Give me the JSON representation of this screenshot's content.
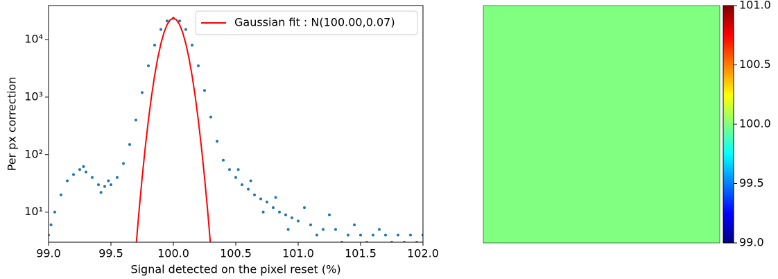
{
  "chart_data": [
    {
      "type": "scatter",
      "xlabel": "Signal detected on the pixel reset (%)",
      "ylabel": "Per px correction",
      "xlim": [
        99,
        102
      ],
      "xticks": [
        {
          "value": 99,
          "label": "99.0"
        },
        {
          "value": 99.5,
          "label": "99.5"
        },
        {
          "value": 100,
          "label": "100.0"
        },
        {
          "value": 100.5,
          "label": "100.5"
        },
        {
          "value": 101,
          "label": "101.0"
        },
        {
          "value": 101.5,
          "label": "101.5"
        },
        {
          "value": 102,
          "label": "102.0"
        }
      ],
      "ylim": [
        3,
        39000
      ],
      "yscale": "log",
      "yticks": [
        {
          "value": 10,
          "label": "10¹"
        },
        {
          "value": 100,
          "label": "10²"
        },
        {
          "value": 1000,
          "label": "10³"
        },
        {
          "value": 10000,
          "label": "10⁴"
        }
      ],
      "legend": "upper right",
      "series": [
        {
          "type": "scatter",
          "color": "#1f77b4",
          "x": [
            99.0,
            99.05,
            99.1,
            99.15,
            99.2,
            99.25,
            99.3,
            99.35,
            99.4,
            99.45,
            99.5,
            99.55,
            99.6,
            99.65,
            99.7,
            99.75,
            99.8,
            99.85,
            99.9,
            99.95,
            100.0,
            100.05,
            100.1,
            100.15,
            100.2,
            100.25,
            100.3,
            100.35,
            100.4,
            100.45,
            100.5,
            100.55,
            100.6,
            100.65,
            100.7,
            100.75,
            100.8,
            100.85,
            100.9,
            100.95,
            101.0,
            101.1,
            101.2,
            101.3,
            101.4,
            101.5,
            101.6,
            101.7,
            101.8,
            101.9,
            102.0,
            99.02,
            99.28,
            99.42,
            99.48,
            100.52,
            100.62,
            100.72,
            100.82,
            100.92,
            101.05,
            101.15,
            101.25,
            101.35,
            101.45,
            101.55,
            101.65,
            101.75,
            101.85,
            101.95
          ],
          "values": [
            4,
            10,
            20,
            35,
            45,
            55,
            50,
            40,
            30,
            28,
            30,
            40,
            70,
            150,
            400,
            1200,
            3500,
            8000,
            15000,
            21000,
            23500,
            21000,
            15000,
            8000,
            3500,
            1300,
            450,
            170,
            80,
            55,
            40,
            30,
            25,
            20,
            17,
            15,
            12,
            10,
            9,
            8,
            7,
            6,
            5,
            5,
            4,
            4,
            4,
            4,
            4,
            4,
            4,
            6,
            62,
            22,
            35,
            55,
            35,
            10,
            18,
            5,
            12,
            4,
            9,
            3,
            6,
            3,
            5,
            3,
            3,
            3
          ]
        },
        {
          "type": "line",
          "name": "Gaussian fit : N(100.00,0.07)",
          "color": "#ff0000",
          "x": [
            99.7,
            99.725,
            99.75,
            99.775,
            99.8,
            99.825,
            99.85,
            99.875,
            99.9,
            99.925,
            99.95,
            99.975,
            100.0,
            100.025,
            100.05,
            100.075,
            100.1,
            100.125,
            100.15,
            100.175,
            100.2,
            100.225,
            100.25,
            100.275,
            100.3
          ],
          "values": [
            2.4,
            10.4,
            40,
            134,
            397,
            1032,
            2366,
            4772,
            8474,
            13240,
            18210,
            22040,
            23500,
            22040,
            18210,
            13240,
            8474,
            4772,
            2366,
            1032,
            397,
            134,
            40,
            10.4,
            2.4
          ]
        }
      ]
    },
    {
      "type": "heatmap",
      "colormap": "jet",
      "clim": [
        99,
        101
      ],
      "colorbar_ticks": [
        {
          "value": 99,
          "label": "99.0"
        },
        {
          "value": 99.5,
          "label": "99.5"
        },
        {
          "value": 100,
          "label": "100.0"
        },
        {
          "value": 100.5,
          "label": "100.5"
        },
        {
          "value": 101,
          "label": "101.0"
        }
      ],
      "values": [
        [
          100,
          100,
          100,
          100,
          100,
          100,
          100,
          100
        ],
        [
          100,
          100,
          100,
          100,
          100,
          100,
          100,
          100
        ],
        [
          100,
          100,
          100,
          100,
          100,
          100,
          100,
          100
        ],
        [
          100,
          100,
          100,
          100,
          100,
          100,
          100,
          100
        ],
        [
          100,
          100,
          100,
          100,
          100,
          100,
          100,
          100
        ],
        [
          100,
          100,
          100,
          100,
          100,
          100,
          100,
          100
        ],
        [
          100,
          100,
          100,
          100,
          100,
          100,
          100,
          100
        ],
        [
          100,
          100,
          100,
          100,
          100,
          100,
          100,
          100
        ]
      ]
    }
  ]
}
